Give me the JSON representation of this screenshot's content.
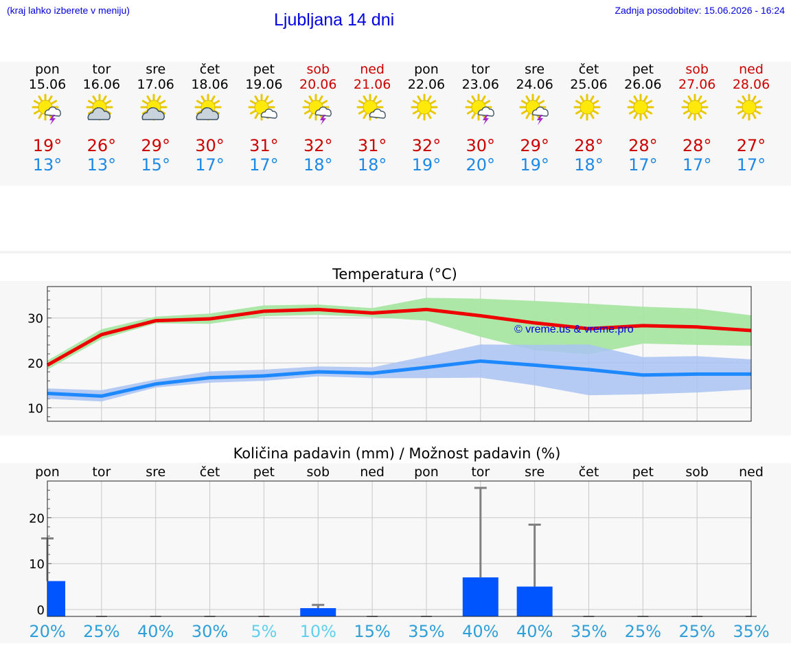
{
  "header": {
    "note": "(kraj lahko izberete v meniju)",
    "title": "Ljubljana 14 dni",
    "updated": "Zadnja posodobitev: 15.06.2026 - 16:24"
  },
  "days": [
    {
      "name": "pon",
      "date": "15.06",
      "weekend": false,
      "icon": "sun-cloud-storm-icon",
      "tmax": "19°",
      "tmin": "13°"
    },
    {
      "name": "tor",
      "date": "16.06",
      "weekend": false,
      "icon": "sun-cloud-icon",
      "tmax": "26°",
      "tmin": "13°"
    },
    {
      "name": "sre",
      "date": "17.06",
      "weekend": false,
      "icon": "sun-cloud-icon",
      "tmax": "29°",
      "tmin": "15°"
    },
    {
      "name": "čet",
      "date": "18.06",
      "weekend": false,
      "icon": "sun-cloud-icon",
      "tmax": "30°",
      "tmin": "17°"
    },
    {
      "name": "pet",
      "date": "19.06",
      "weekend": false,
      "icon": "sun-small-cloud-icon",
      "tmax": "31°",
      "tmin": "17°"
    },
    {
      "name": "sob",
      "date": "20.06",
      "weekend": true,
      "icon": "sun-cloud-storm-icon",
      "tmax": "32°",
      "tmin": "18°"
    },
    {
      "name": "ned",
      "date": "21.06",
      "weekend": true,
      "icon": "sun-small-cloud-icon",
      "tmax": "31°",
      "tmin": "18°"
    },
    {
      "name": "pon",
      "date": "22.06",
      "weekend": false,
      "icon": "sun-icon",
      "tmax": "32°",
      "tmin": "19°"
    },
    {
      "name": "tor",
      "date": "23.06",
      "weekend": false,
      "icon": "sun-cloud-storm-icon",
      "tmax": "30°",
      "tmin": "20°"
    },
    {
      "name": "sre",
      "date": "24.06",
      "weekend": false,
      "icon": "sun-cloud-storm-icon",
      "tmax": "29°",
      "tmin": "19°"
    },
    {
      "name": "čet",
      "date": "25.06",
      "weekend": false,
      "icon": "sun-icon",
      "tmax": "28°",
      "tmin": "18°"
    },
    {
      "name": "pet",
      "date": "26.06",
      "weekend": false,
      "icon": "sun-icon",
      "tmax": "28°",
      "tmin": "17°"
    },
    {
      "name": "sob",
      "date": "27.06",
      "weekend": true,
      "icon": "sun-icon",
      "tmax": "28°",
      "tmin": "17°"
    },
    {
      "name": "ned",
      "date": "28.06",
      "weekend": true,
      "icon": "sun-icon",
      "tmax": "27°",
      "tmin": "17°"
    }
  ],
  "colors": {
    "link_blue": "#0000e0",
    "max_line": "#ee0000",
    "max_band": "#a8e6a3",
    "min_line": "#1e88ff",
    "min_band": "#a9c3f3",
    "precip_bar": "#0055ff",
    "whisker": "#808080",
    "weekend_text": "#cc0000"
  },
  "chart_data": [
    {
      "type": "line",
      "title": "Temperatura (°C)",
      "watermark": "© vreme.us & vreme.pro",
      "ylim": [
        7,
        37
      ],
      "yticks": [
        10,
        20,
        30
      ],
      "grid": true,
      "series": [
        {
          "values": [
            19.5,
            26.3,
            29.4,
            29.8,
            31.5,
            31.9,
            31.1,
            31.9,
            30.5,
            28.9,
            27.6,
            28.3,
            28.0,
            27.2
          ],
          "band_low": [
            18.5,
            25.3,
            28.8,
            28.7,
            30.4,
            30.7,
            30.2,
            29.4,
            25.8,
            22.8,
            21.9,
            24.3,
            24.0,
            23.8
          ],
          "band_high": [
            20.5,
            27.5,
            30.3,
            31.0,
            32.8,
            33.0,
            32.2,
            34.5,
            34.3,
            33.8,
            33.2,
            32.5,
            32.1,
            30.6
          ]
        },
        {
          "values": [
            13.2,
            12.6,
            15.3,
            16.7,
            17.1,
            18.0,
            17.7,
            19.0,
            20.4,
            19.5,
            18.5,
            17.3,
            17.5,
            17.5
          ],
          "band_low": [
            12.0,
            11.4,
            14.5,
            15.6,
            16.0,
            17.0,
            16.6,
            16.6,
            16.7,
            15.0,
            12.8,
            13.0,
            13.4,
            14.1
          ],
          "band_high": [
            14.3,
            13.9,
            16.3,
            18.1,
            18.5,
            19.2,
            19.0,
            21.5,
            24.1,
            24.0,
            24.1,
            21.3,
            21.5,
            20.8
          ]
        }
      ]
    },
    {
      "type": "bar",
      "title": "Količina padavin (mm) / Možnost padavin (%)",
      "categories": [
        "pon",
        "tor",
        "sre",
        "čet",
        "pet",
        "sob",
        "ned",
        "pon",
        "tor",
        "sre",
        "čet",
        "pet",
        "sob",
        "ned"
      ],
      "ylim": [
        -1.5,
        28
      ],
      "yticks": [
        0,
        10,
        20
      ],
      "grid": true,
      "values": [
        6.2,
        0,
        0,
        0,
        0,
        0.3,
        0,
        0,
        7.0,
        5.0,
        0,
        0,
        0,
        0
      ],
      "error_high": [
        15.5,
        0,
        0,
        0.1,
        0.1,
        1.0,
        0,
        0,
        26.5,
        18.5,
        0,
        0.1,
        0.1,
        0
      ],
      "probability": [
        "20%",
        "25%",
        "40%",
        "30%",
        "5%",
        "10%",
        "15%",
        "35%",
        "40%",
        "40%",
        "35%",
        "25%",
        "25%",
        "35%"
      ],
      "probability_colors": [
        "#2e9fd8",
        "#2e9fd8",
        "#2e9fd8",
        "#2e9fd8",
        "#5fd0ee",
        "#5fd0ee",
        "#2e9fd8",
        "#2e9fd8",
        "#2e9fd8",
        "#2e9fd8",
        "#2e9fd8",
        "#2e9fd8",
        "#2e9fd8",
        "#2e9fd8"
      ]
    }
  ]
}
